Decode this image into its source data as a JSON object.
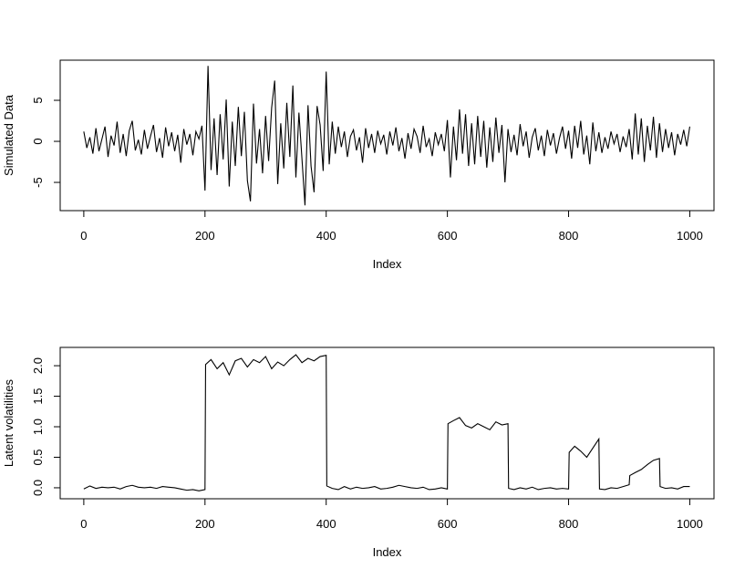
{
  "chart_data": [
    {
      "type": "line",
      "xlabel": "Index",
      "ylabel": "Simulated Data",
      "color": "#000000",
      "xlim": [
        -38.96,
        1039.96
      ],
      "xticks": [
        0,
        200,
        400,
        600,
        800,
        1000
      ],
      "ylim": [
        -8.44,
        9.89
      ],
      "yticks": [
        -5,
        0,
        5
      ],
      "x": [
        0,
        5,
        10,
        15,
        20,
        25,
        30,
        35,
        40,
        45,
        50,
        55,
        60,
        65,
        70,
        75,
        80,
        85,
        90,
        95,
        100,
        105,
        110,
        115,
        120,
        125,
        130,
        135,
        140,
        145,
        150,
        155,
        160,
        165,
        170,
        175,
        180,
        185,
        190,
        195,
        200,
        205,
        210,
        215,
        220,
        225,
        230,
        235,
        240,
        245,
        250,
        255,
        260,
        265,
        270,
        275,
        280,
        285,
        290,
        295,
        300,
        305,
        310,
        315,
        320,
        325,
        330,
        335,
        340,
        345,
        350,
        355,
        360,
        365,
        370,
        375,
        380,
        385,
        390,
        395,
        400,
        405,
        410,
        415,
        420,
        425,
        430,
        435,
        440,
        445,
        450,
        455,
        460,
        465,
        470,
        475,
        480,
        485,
        490,
        495,
        500,
        505,
        510,
        515,
        520,
        525,
        530,
        535,
        540,
        545,
        550,
        555,
        560,
        565,
        570,
        575,
        580,
        585,
        590,
        595,
        600,
        605,
        610,
        615,
        620,
        625,
        630,
        635,
        640,
        645,
        650,
        655,
        660,
        665,
        670,
        675,
        680,
        685,
        690,
        695,
        700,
        705,
        710,
        715,
        720,
        725,
        730,
        735,
        740,
        745,
        750,
        755,
        760,
        765,
        770,
        775,
        780,
        785,
        790,
        795,
        800,
        805,
        810,
        815,
        820,
        825,
        830,
        835,
        840,
        845,
        850,
        855,
        860,
        865,
        870,
        875,
        880,
        885,
        890,
        895,
        900,
        905,
        910,
        915,
        920,
        925,
        930,
        935,
        940,
        945,
        950,
        955,
        960,
        965,
        970,
        975,
        980,
        985,
        990,
        995,
        1000
      ],
      "values": [
        1.2,
        -0.8,
        0.5,
        -1.5,
        1.6,
        -1.2,
        0.3,
        1.8,
        -1.9,
        0.7,
        -0.5,
        2.4,
        -1.4,
        0.9,
        -1.8,
        1.3,
        2.5,
        -1.1,
        0.2,
        -1.6,
        1.4,
        -0.9,
        0.6,
        2.0,
        -1.3,
        0.4,
        -2.0,
        1.7,
        -0.6,
        1.1,
        -1.2,
        0.8,
        -2.6,
        1.5,
        -0.4,
        0.9,
        -1.7,
        1.2,
        0.3,
        1.9,
        -6.0,
        9.2,
        -3.5,
        2.8,
        -4.1,
        3.3,
        -2.2,
        5.1,
        -5.5,
        2.4,
        -3.0,
        4.2,
        -1.8,
        3.6,
        -4.8,
        -7.3,
        4.6,
        -2.7,
        1.5,
        -3.9,
        3.1,
        -2.4,
        4.1,
        7.4,
        -5.2,
        2.2,
        -3.3,
        4.7,
        -1.9,
        6.8,
        -4.4,
        3.5,
        -2.1,
        -7.8,
        4.4,
        -3.0,
        -6.2,
        4.3,
        2.0,
        -3.6,
        8.5,
        -2.8,
        2.4,
        -1.5,
        1.8,
        -0.7,
        1.2,
        -1.9,
        0.6,
        1.4,
        -1.1,
        0.5,
        -2.6,
        1.6,
        -0.8,
        0.9,
        -1.4,
        1.3,
        -0.3,
        0.8,
        -1.6,
        1.2,
        -0.5,
        1.7,
        -1.2,
        0.4,
        -2.1,
        1.0,
        -0.9,
        1.5,
        0.6,
        -1.4,
        1.9,
        -0.7,
        0.3,
        -1.8,
        1.1,
        -0.4,
        0.9,
        -1.2,
        2.6,
        -4.4,
        1.8,
        -2.3,
        3.9,
        -1.5,
        3.3,
        -3.0,
        2.2,
        -2.8,
        3.1,
        -1.9,
        2.5,
        -3.2,
        1.7,
        -2.5,
        2.9,
        -1.4,
        2.0,
        -5.0,
        1.5,
        -1.3,
        0.8,
        -1.7,
        2.1,
        -0.6,
        1.2,
        -2.0,
        0.5,
        1.6,
        -1.1,
        0.7,
        -1.8,
        1.4,
        -0.5,
        1.0,
        -1.5,
        0.4,
        1.8,
        -0.9,
        1.3,
        -2.1,
        1.9,
        -0.8,
        2.5,
        -1.6,
        0.7,
        -2.8,
        2.3,
        -1.2,
        1.1,
        -1.4,
        0.5,
        -0.9,
        1.2,
        -0.3,
        0.9,
        -1.3,
        0.6,
        -0.7,
        1.5,
        -2.2,
        3.4,
        -1.6,
        2.8,
        -2.5,
        1.9,
        -1.1,
        3.0,
        -2.0,
        2.2,
        -1.3,
        1.5,
        -0.8,
        1.1,
        -1.7,
        0.9,
        -0.4,
        1.4,
        -0.6,
        1.8
      ]
    },
    {
      "type": "line",
      "xlabel": "Index",
      "ylabel": "Latent volatilities",
      "color": "#000000",
      "xlim": [
        -38.96,
        1039.96
      ],
      "xticks": [
        0,
        200,
        400,
        600,
        800,
        1000
      ],
      "ylim": [
        -0.18,
        2.3
      ],
      "yticks": [
        {
          "value": 0,
          "label": "0.0"
        },
        0.5,
        {
          "value": 1,
          "label": "1.0"
        },
        1.5,
        {
          "value": 2,
          "label": "2.0"
        }
      ],
      "x": [
        0,
        10,
        20,
        30,
        40,
        50,
        60,
        70,
        80,
        90,
        100,
        110,
        120,
        130,
        140,
        150,
        160,
        170,
        180,
        190,
        200,
        201,
        210,
        220,
        230,
        240,
        250,
        260,
        270,
        280,
        290,
        300,
        310,
        320,
        330,
        340,
        350,
        360,
        370,
        380,
        390,
        400,
        401,
        410,
        420,
        430,
        440,
        450,
        460,
        470,
        480,
        490,
        500,
        510,
        520,
        530,
        540,
        550,
        560,
        570,
        580,
        590,
        600,
        601,
        610,
        620,
        630,
        640,
        650,
        660,
        670,
        680,
        690,
        700,
        701,
        710,
        720,
        730,
        740,
        750,
        760,
        770,
        780,
        790,
        800,
        801,
        810,
        820,
        830,
        840,
        850,
        851,
        860,
        870,
        880,
        890,
        900,
        901,
        910,
        920,
        930,
        940,
        950,
        951,
        960,
        970,
        980,
        990,
        1000
      ],
      "values": [
        -0.02,
        0.03,
        -0.01,
        0.01,
        0.0,
        0.01,
        -0.02,
        0.02,
        0.04,
        0.01,
        0.0,
        0.01,
        -0.01,
        0.02,
        0.01,
        0.0,
        -0.02,
        -0.04,
        -0.03,
        -0.05,
        -0.03,
        2.02,
        2.1,
        1.95,
        2.05,
        1.85,
        2.08,
        2.12,
        1.98,
        2.1,
        2.05,
        2.15,
        1.95,
        2.06,
        2.0,
        2.1,
        2.18,
        2.05,
        2.12,
        2.08,
        2.15,
        2.17,
        0.03,
        -0.01,
        -0.03,
        0.02,
        -0.02,
        0.01,
        -0.01,
        0.0,
        0.02,
        -0.02,
        -0.01,
        0.01,
        0.04,
        0.02,
        0.0,
        -0.01,
        0.01,
        -0.03,
        -0.02,
        0.0,
        -0.02,
        1.05,
        1.1,
        1.15,
        1.02,
        0.98,
        1.05,
        1.0,
        0.95,
        1.08,
        1.03,
        1.05,
        -0.01,
        -0.03,
        0.0,
        -0.02,
        0.01,
        -0.03,
        -0.01,
        0.0,
        -0.02,
        -0.01,
        -0.02,
        0.58,
        0.68,
        0.6,
        0.5,
        0.65,
        0.8,
        -0.02,
        -0.03,
        0.0,
        -0.01,
        0.02,
        0.05,
        0.2,
        0.25,
        0.3,
        0.38,
        0.45,
        0.48,
        0.02,
        -0.01,
        0.0,
        -0.02,
        0.02,
        0.02
      ]
    }
  ]
}
